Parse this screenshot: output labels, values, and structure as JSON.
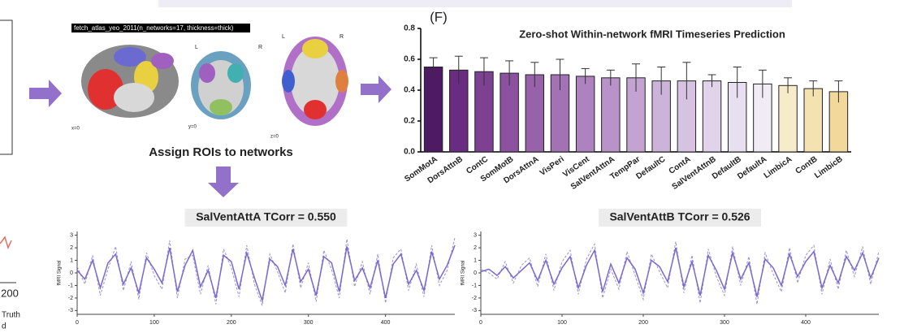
{
  "figure": {
    "atlas_label": "fetch_atlas_yeo_2011(n_networks=17, thickness=thick)",
    "left": "L",
    "right": "R",
    "slice_x": "x=0",
    "slice_y": "y=0",
    "slice_z": "z=0",
    "assign": "Assign ROIs to networks",
    "panel": "(F)",
    "left_tick": "200",
    "left_legend_1": "Truth",
    "left_legend_2": "d"
  },
  "chart_data": [
    {
      "type": "bar",
      "title": "Zero-shot Within-network fMRI Timeseries Prediction",
      "categories": [
        "SomMotA",
        "DorsAttnB",
        "ContC",
        "SomMotB",
        "DorsAttnA",
        "VisPeri",
        "VisCent",
        "SalVentAttnA",
        "TempPar",
        "DefaultC",
        "ContA",
        "SalVentAttnB",
        "DefaultB",
        "DefaultA",
        "LimbicA",
        "ContB",
        "LimbicB"
      ],
      "values": [
        0.55,
        0.53,
        0.52,
        0.51,
        0.5,
        0.5,
        0.49,
        0.48,
        0.48,
        0.46,
        0.46,
        0.46,
        0.45,
        0.44,
        0.43,
        0.41,
        0.39
      ],
      "errors": [
        0.06,
        0.09,
        0.09,
        0.08,
        0.08,
        0.1,
        0.05,
        0.05,
        0.09,
        0.09,
        0.12,
        0.04,
        0.1,
        0.09,
        0.05,
        0.05,
        0.07
      ],
      "colors": [
        "#4e1a63",
        "#6a2c80",
        "#7d4192",
        "#8c52a0",
        "#9862ab",
        "#a372b5",
        "#ae82bf",
        "#b892c8",
        "#c2a3d1",
        "#ccb3d9",
        "#d6c3e2",
        "#e0d3ea",
        "#e8e0f0",
        "#f0ebf4",
        "#f6ecc9",
        "#f4e2b0",
        "#f2d99b"
      ],
      "ylim": [
        0,
        0.8
      ],
      "yticks": [
        {
          "value": 0,
          "label": "0.0"
        },
        {
          "value": 0.2,
          "label": "0.2"
        },
        {
          "value": 0.4,
          "label": "0.4"
        },
        {
          "value": 0.6,
          "label": "0.6"
        },
        {
          "value": 0.8,
          "label": "0.8"
        }
      ]
    },
    {
      "type": "line",
      "title": "SalVentAttA TCorr = 0.550",
      "y_label": "fMRI Signal",
      "x": [
        0,
        10,
        20,
        30,
        40,
        50,
        60,
        70,
        80,
        90,
        100,
        110,
        120,
        130,
        140,
        150,
        160,
        170,
        180,
        190,
        200,
        210,
        220,
        230,
        240,
        250,
        260,
        270,
        280,
        290,
        300,
        310,
        320,
        330,
        340,
        350,
        360,
        370,
        380,
        390,
        400,
        410,
        420,
        430,
        440,
        450,
        460,
        470,
        480,
        490
      ],
      "series": [
        {
          "color": "#9b8fd6",
          "dash": true,
          "values": [
            0.5,
            -0.9,
            1.4,
            -1.8,
            0.3,
            2.1,
            -1.4,
            0.9,
            -2.1,
            1.6,
            -0.2,
            -1.3,
            2.6,
            -2.0,
            1.1,
            1.4,
            -1.7,
            0.6,
            -2.5,
            1.9,
            0.4,
            -1.9,
            2.2,
            -0.9,
            -2.6,
            1.5,
            0.1,
            -1.6,
            2.3,
            -1.2,
            0.8,
            -2.3,
            1.8,
            0.3,
            -2.0,
            2.7,
            -1.1,
            0.9,
            -1.7,
            1.5,
            -2.4,
            1.2,
            1.9,
            -1.4,
            0.7,
            -1.9,
            2.2,
            -1.0,
            0.2,
            2.8
          ]
        },
        {
          "color": "#7b68cf",
          "dash": false,
          "values": [
            0.2,
            -0.5,
            1.0,
            -1.2,
            0.8,
            1.5,
            -0.9,
            0.4,
            -1.6,
            1.2,
            0.3,
            -0.8,
            2.0,
            -1.5,
            0.6,
            1.8,
            -1.1,
            0.2,
            -2.0,
            1.4,
            0.9,
            -1.3,
            1.6,
            -0.4,
            -2.2,
            1.1,
            0.5,
            -1.0,
            1.9,
            -0.7,
            0.3,
            -1.8,
            1.3,
            0.8,
            -1.5,
            2.1,
            -0.6,
            0.4,
            -1.2,
            1.0,
            -2.0,
            0.7,
            1.5,
            -0.9,
            0.2,
            -1.4,
            1.7,
            -0.5,
            0.6,
            2.2
          ]
        }
      ],
      "xlim": [
        0,
        490
      ],
      "xticks": [
        0,
        100,
        200,
        300,
        400
      ],
      "ylim": [
        -3.3,
        3.3
      ],
      "yticks": [
        -3,
        -2,
        -1,
        0,
        1,
        2,
        3
      ]
    },
    {
      "type": "line",
      "title": "SalVentAttB TCorr = 0.526",
      "y_label": "fMRI Signal",
      "x": [
        0,
        10,
        20,
        30,
        40,
        50,
        60,
        70,
        80,
        90,
        100,
        110,
        120,
        130,
        140,
        150,
        160,
        170,
        180,
        190,
        200,
        210,
        220,
        230,
        240,
        250,
        260,
        270,
        280,
        290,
        300,
        310,
        320,
        330,
        340,
        350,
        360,
        370,
        380,
        390,
        400,
        410,
        420,
        430,
        440,
        450,
        460,
        470,
        480,
        490
      ],
      "series": [
        {
          "color": "#9b8fd6",
          "dash": true,
          "values": [
            0.3,
            0.0,
            -0.5,
            0.9,
            -0.8,
            0.6,
            1.2,
            -1.1,
            1.5,
            -1.4,
            0.9,
            1.8,
            -1.7,
            1.1,
            2.3,
            -2.0,
            0.3,
            -1.3,
            1.7,
            -0.2,
            -2.1,
            1.5,
            0.1,
            -1.2,
            2.5,
            -1.6,
            1.4,
            -2.4,
            1.9,
            -0.3,
            -1.8,
            2.1,
            -1.0,
            1.3,
            -2.5,
            1.6,
            -0.1,
            -1.5,
            2.0,
            -0.8,
            1.4,
            2.2,
            -1.7,
            1.1,
            -1.3,
            1.8,
            -0.3,
            2.1,
            -0.9,
            1.7
          ]
        },
        {
          "color": "#7b68cf",
          "dash": false,
          "values": [
            0.1,
            0.3,
            -0.2,
            0.5,
            -0.4,
            0.2,
            0.8,
            -0.6,
            1.0,
            -0.9,
            0.4,
            1.3,
            -1.2,
            0.6,
            1.8,
            -1.5,
            0.7,
            -0.8,
            1.2,
            0.3,
            -1.6,
            1.0,
            0.5,
            -0.7,
            2.0,
            -1.1,
            0.9,
            -1.8,
            1.4,
            0.2,
            -1.3,
            1.6,
            -0.5,
            0.8,
            -1.9,
            1.1,
            0.4,
            -1.0,
            1.5,
            -0.3,
            0.9,
            1.7,
            -1.2,
            0.6,
            -0.8,
            1.3,
            0.2,
            1.6,
            -0.4,
            1.2
          ]
        }
      ],
      "xlim": [
        0,
        490
      ],
      "xticks": [
        0,
        100,
        200,
        300,
        400
      ],
      "ylim": [
        -3.3,
        3.3
      ],
      "yticks": [
        -3,
        -2,
        -1,
        0,
        1,
        2,
        3
      ]
    }
  ]
}
